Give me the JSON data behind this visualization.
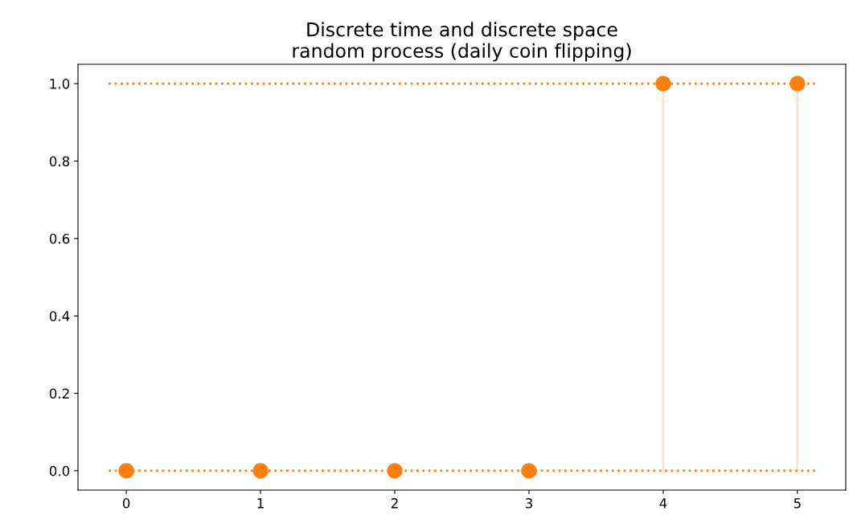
{
  "chart_data": {
    "type": "lollipop",
    "title": "Discrete time and discrete space\nrandom process (daily coin flipping)",
    "x": [
      0,
      1,
      2,
      3,
      4,
      5
    ],
    "series": [
      {
        "color": "#ff7f0e",
        "values": [
          0,
          0,
          0,
          0,
          1,
          1
        ]
      }
    ],
    "marker": "circle",
    "xlim": [
      -0.36,
      5.36
    ],
    "xticks": [
      0,
      1,
      2,
      3,
      4,
      5
    ],
    "ylim": [
      -0.05,
      1.05
    ],
    "yticks": [
      {
        "value": 0,
        "label": "0.0"
      },
      {
        "value": 0.2,
        "label": "0.2"
      },
      {
        "value": 0.4,
        "label": "0.4"
      },
      {
        "value": 0.6,
        "label": "0.6"
      },
      {
        "value": 0.8,
        "label": "0.8"
      },
      {
        "value": 1.0,
        "label": "1.0"
      }
    ],
    "ref_lines": [
      {
        "axis": "y",
        "value": 0,
        "color": "#ff7f0e",
        "line_style": "dotted"
      },
      {
        "axis": "y",
        "value": 1,
        "color": "#ff7f0e",
        "line_style": "dotted"
      }
    ],
    "legend": false
  }
}
